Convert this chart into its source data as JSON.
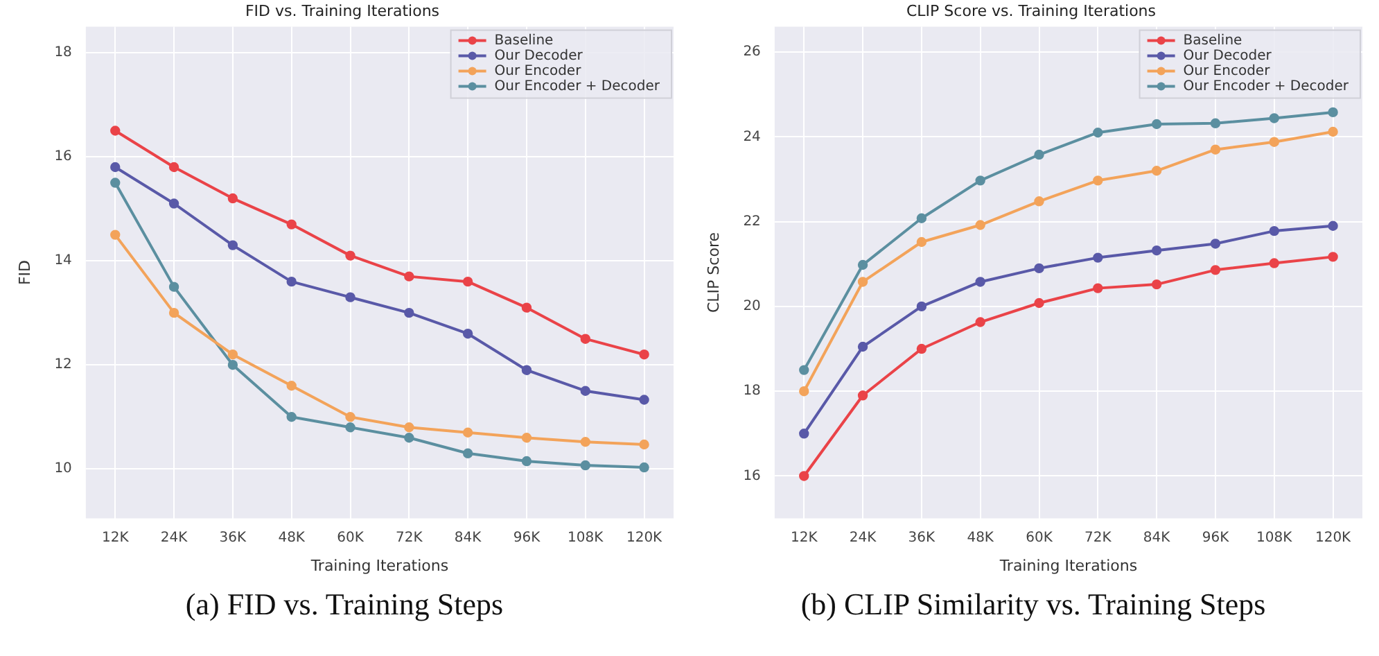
{
  "chart_data": [
    {
      "type": "line",
      "title": "FID vs. Training Iterations",
      "xlabel": "Training Iterations",
      "ylabel": "FID",
      "annotations": [
        "(a) FID vs. Training Steps"
      ],
      "categories": [
        "12K",
        "24K",
        "36K",
        "48K",
        "60K",
        "72K",
        "84K",
        "96K",
        "108K",
        "120K"
      ],
      "series": [
        {
          "name": "Baseline",
          "color": "#ea4348",
          "values": [
            16.5,
            15.8,
            15.2,
            14.7,
            14.1,
            13.7,
            13.6,
            13.1,
            12.5,
            12.2
          ]
        },
        {
          "name": "Our Decoder",
          "color": "#5959a8",
          "values": [
            15.8,
            15.1,
            14.3,
            13.6,
            13.3,
            13.0,
            12.6,
            11.9,
            11.5,
            11.33
          ]
        },
        {
          "name": "Our Encoder",
          "color": "#f3a35a",
          "values": [
            14.5,
            13.0,
            12.2,
            11.6,
            11.0,
            10.8,
            10.7,
            10.6,
            10.52,
            10.47
          ]
        },
        {
          "name": "Our Encoder + Decoder",
          "color": "#5b8fa0",
          "values": [
            15.5,
            13.5,
            12.0,
            11.0,
            10.8,
            10.6,
            10.3,
            10.15,
            10.07,
            10.03
          ]
        }
      ],
      "ylim": [
        9.05,
        18.5
      ],
      "yticks": [
        10,
        12,
        14,
        16,
        18
      ],
      "grid": true,
      "legend": "top right",
      "marker": "circle",
      "line_style": "solid"
    },
    {
      "type": "line",
      "title": "CLIP Score vs. Training Iterations",
      "xlabel": "Training Iterations",
      "ylabel": "CLIP Score",
      "annotations": [
        "(b) CLIP Similarity vs. Training Steps"
      ],
      "categories": [
        "12K",
        "24K",
        "36K",
        "48K",
        "60K",
        "72K",
        "84K",
        "96K",
        "108K",
        "120K"
      ],
      "series": [
        {
          "name": "Baseline",
          "color": "#ea4348",
          "values": [
            16.0,
            17.9,
            19.0,
            19.63,
            20.08,
            20.43,
            20.52,
            20.86,
            21.02,
            21.17
          ]
        },
        {
          "name": "Our Decoder",
          "color": "#5959a8",
          "values": [
            17.0,
            19.05,
            20.0,
            20.58,
            20.9,
            21.15,
            21.32,
            21.48,
            21.78,
            21.9
          ]
        },
        {
          "name": "Our Encoder",
          "color": "#f3a35a",
          "values": [
            18.0,
            20.58,
            21.52,
            21.92,
            22.48,
            22.97,
            23.2,
            23.7,
            23.88,
            24.12
          ]
        },
        {
          "name": "Our Encoder + Decoder",
          "color": "#5b8fa0",
          "values": [
            18.5,
            20.98,
            22.08,
            22.97,
            23.58,
            24.1,
            24.3,
            24.32,
            24.44,
            24.58
          ]
        }
      ],
      "ylim": [
        15.0,
        26.6
      ],
      "yticks": [
        16,
        18,
        20,
        22,
        24,
        26
      ],
      "grid": true,
      "legend": "top right",
      "marker": "circle",
      "line_style": "solid"
    }
  ]
}
